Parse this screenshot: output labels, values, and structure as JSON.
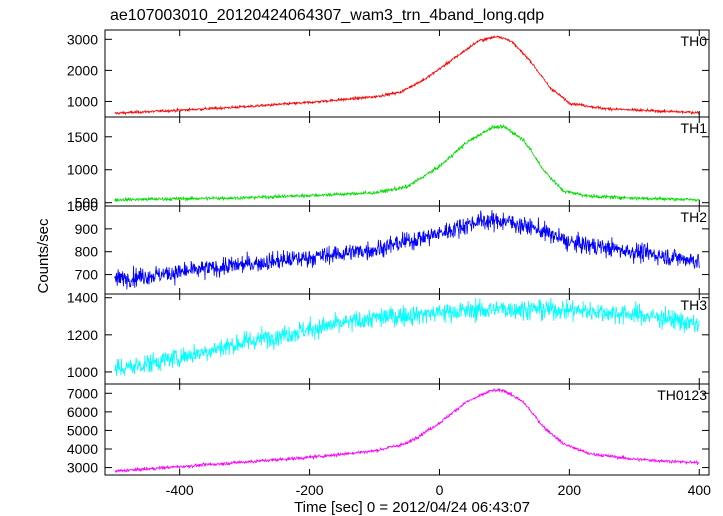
{
  "chart_data": {
    "type": "line",
    "title": "ae107003010_20120424064307_wam3_trn_4band_long.qdp",
    "xlabel": "Time [sec] 0 = 2012/04/24 06:43:07",
    "ylabel": "Counts/sec",
    "xlim": [
      -515,
      415
    ],
    "x_ticks": [
      -400,
      -200,
      0,
      200,
      400
    ],
    "x_range": [
      -500,
      400
    ],
    "panels": [
      {
        "name": "TH0",
        "color": "#ff0000",
        "ylim": [
          500,
          3300
        ],
        "y_ticks": [
          1000,
          2000,
          3000
        ],
        "noise": 30,
        "profile": [
          [
            -500,
            620
          ],
          [
            -400,
            720
          ],
          [
            -300,
            830
          ],
          [
            -200,
            970
          ],
          [
            -100,
            1150
          ],
          [
            -60,
            1300
          ],
          [
            -20,
            1750
          ],
          [
            20,
            2350
          ],
          [
            60,
            2950
          ],
          [
            90,
            3100
          ],
          [
            110,
            2950
          ],
          [
            140,
            2300
          ],
          [
            170,
            1450
          ],
          [
            200,
            950
          ],
          [
            250,
            780
          ],
          [
            300,
            720
          ],
          [
            400,
            640
          ]
        ]
      },
      {
        "name": "TH1",
        "color": "#00dd00",
        "ylim": [
          450,
          1800
        ],
        "y_ticks": [
          500,
          1000,
          1500
        ],
        "noise": 18,
        "profile": [
          [
            -500,
            545
          ],
          [
            -300,
            575
          ],
          [
            -200,
            610
          ],
          [
            -100,
            650
          ],
          [
            -50,
            740
          ],
          [
            0,
            1050
          ],
          [
            40,
            1400
          ],
          [
            80,
            1640
          ],
          [
            100,
            1650
          ],
          [
            130,
            1450
          ],
          [
            160,
            1000
          ],
          [
            190,
            680
          ],
          [
            230,
            600
          ],
          [
            300,
            570
          ],
          [
            400,
            545
          ]
        ]
      },
      {
        "name": "TH2",
        "color": "#0000ff",
        "ylim": [
          615,
          1000
        ],
        "y_ticks": [
          700,
          800,
          900,
          1000
        ],
        "noise": 28,
        "profile": [
          [
            -500,
            680
          ],
          [
            -400,
            710
          ],
          [
            -300,
            745
          ],
          [
            -200,
            775
          ],
          [
            -100,
            810
          ],
          [
            0,
            880
          ],
          [
            60,
            935
          ],
          [
            100,
            935
          ],
          [
            150,
            900
          ],
          [
            200,
            840
          ],
          [
            300,
            800
          ],
          [
            400,
            760
          ]
        ]
      },
      {
        "name": "TH3",
        "color": "#00ffff",
        "ylim": [
          935,
          1420
        ],
        "y_ticks": [
          1000,
          1200,
          1400
        ],
        "noise": 38,
        "profile": [
          [
            -500,
            1010
          ],
          [
            -400,
            1080
          ],
          [
            -300,
            1160
          ],
          [
            -200,
            1230
          ],
          [
            -100,
            1290
          ],
          [
            0,
            1320
          ],
          [
            100,
            1340
          ],
          [
            200,
            1335
          ],
          [
            300,
            1310
          ],
          [
            350,
            1290
          ],
          [
            400,
            1250
          ]
        ]
      },
      {
        "name": "TH0123",
        "color": "#ff00ff",
        "ylim": [
          2600,
          7500
        ],
        "y_ticks": [
          3000,
          4000,
          5000,
          6000,
          7000
        ],
        "noise": 60,
        "profile": [
          [
            -500,
            2800
          ],
          [
            -400,
            3050
          ],
          [
            -300,
            3300
          ],
          [
            -200,
            3550
          ],
          [
            -100,
            3900
          ],
          [
            -50,
            4300
          ],
          [
            0,
            5400
          ],
          [
            40,
            6500
          ],
          [
            80,
            7150
          ],
          [
            100,
            7150
          ],
          [
            130,
            6500
          ],
          [
            160,
            5200
          ],
          [
            190,
            4300
          ],
          [
            230,
            3750
          ],
          [
            300,
            3450
          ],
          [
            400,
            3250
          ]
        ]
      }
    ]
  }
}
